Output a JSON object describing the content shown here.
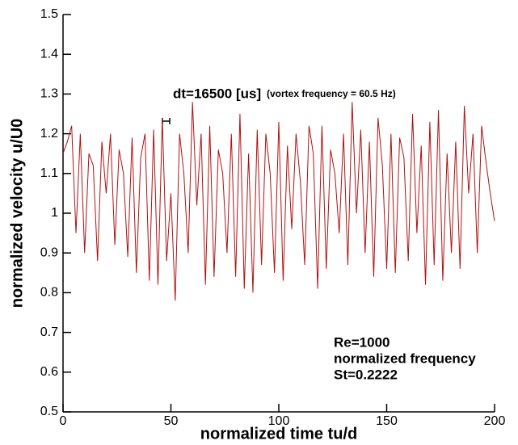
{
  "chart_data": {
    "type": "line",
    "x_label": "normalized time tu/d",
    "y_label": "normalized velocity u/U0",
    "annotations": [
      "dt=16500 [us]",
      "(vortex frequency = 60.5 Hz)",
      "Re=1000",
      "normalized frequency",
      "St=0.2222"
    ],
    "x": [
      0,
      2,
      4,
      6,
      8,
      10,
      12,
      14,
      16,
      18,
      20,
      22,
      24,
      26,
      28,
      30,
      32,
      34,
      36,
      38,
      40,
      42,
      44,
      46,
      48,
      50,
      52,
      54,
      56,
      58,
      60,
      62,
      64,
      66,
      68,
      70,
      72,
      74,
      76,
      78,
      80,
      82,
      84,
      86,
      88,
      90,
      92,
      94,
      96,
      98,
      100,
      102,
      104,
      106,
      108,
      110,
      112,
      114,
      116,
      118,
      120,
      122,
      124,
      126,
      128,
      130,
      132,
      134,
      136,
      138,
      140,
      142,
      144,
      146,
      148,
      150,
      152,
      154,
      156,
      158,
      160,
      162,
      164,
      166,
      168,
      170,
      172,
      174,
      176,
      178,
      180,
      182,
      184,
      186,
      188,
      190,
      192,
      194,
      196,
      198,
      200
    ],
    "series": [
      {
        "color": "#b01010",
        "values": [
          1.15,
          1.18,
          1.22,
          0.95,
          1.2,
          0.9,
          1.15,
          1.12,
          0.88,
          1.18,
          1.05,
          1.2,
          0.92,
          1.16,
          1.1,
          0.89,
          1.19,
          0.85,
          1.14,
          1.2,
          0.83,
          1.21,
          0.82,
          1.24,
          0.88,
          1.05,
          0.78,
          1.2,
          1.1,
          0.9,
          1.28,
          1.02,
          1.2,
          0.82,
          1.22,
          0.84,
          1.16,
          1.1,
          0.9,
          1.2,
          0.84,
          1.25,
          0.81,
          1.15,
          0.8,
          1.21,
          0.87,
          1.2,
          1.1,
          0.85,
          1.23,
          0.83,
          1.17,
          0.96,
          1.2,
          1.08,
          0.87,
          1.22,
          1.15,
          0.81,
          1.22,
          0.86,
          1.16,
          1.1,
          0.95,
          1.2,
          0.87,
          1.28,
          1.0,
          1.21,
          0.9,
          1.18,
          0.84,
          1.24,
          1.12,
          0.86,
          1.2,
          0.85,
          1.19,
          1.14,
          0.88,
          1.25,
          0.95,
          1.17,
          0.82,
          1.23,
          0.87,
          1.26,
          0.83,
          1.15,
          0.9,
          1.18,
          0.86,
          1.27,
          1.05,
          1.2,
          0.9,
          1.22,
          1.13,
          1.05,
          0.98
        ]
      }
    ],
    "xlim": [
      0,
      200
    ],
    "xticks": [
      0,
      50,
      100,
      150,
      200
    ],
    "ylim": [
      0.5,
      1.5
    ],
    "yticks": [
      0.5,
      0.6,
      0.7,
      0.8,
      0.9,
      1,
      1.1,
      1.2,
      1.3,
      1.4,
      1.5
    ]
  }
}
